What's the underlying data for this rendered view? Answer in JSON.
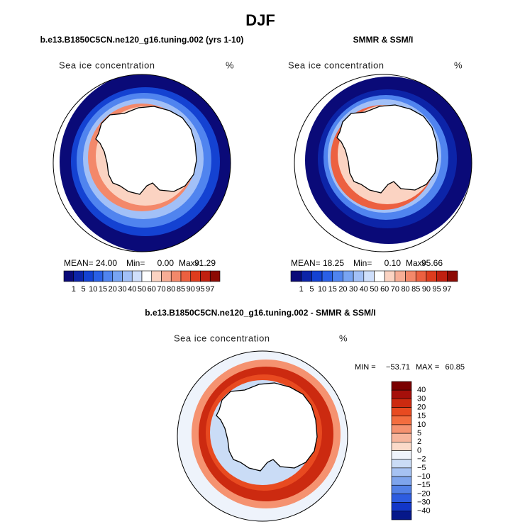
{
  "title": "DJF",
  "panels": [
    {
      "title": "b.e13.B1850C5CN.ne120_g16.tuning.002 (yrs 1-10)",
      "label": "Sea ice concentration",
      "units": "%",
      "stats": [
        {
          "name": "MEAN=",
          "value": "24.00"
        },
        {
          "name": "Min=",
          "value": "0.00"
        },
        {
          "name": "Max=",
          "value": "91.29"
        }
      ]
    },
    {
      "title": "SMMR & SSM/I",
      "label": "Sea ice concentration",
      "units": "%",
      "stats": [
        {
          "name": "MEAN=",
          "value": "18.25"
        },
        {
          "name": "Min=",
          "value": "0.10"
        },
        {
          "name": "Max=",
          "value": "95.66"
        }
      ]
    }
  ],
  "colorbar": {
    "labels": [
      "1",
      "5",
      "10",
      "15",
      "20",
      "30",
      "40",
      "50",
      "60",
      "70",
      "80",
      "85",
      "90",
      "95",
      "97"
    ],
    "colors": [
      "#0a0a78",
      "#0c24a8",
      "#1442d2",
      "#2a60e6",
      "#5084ef",
      "#78a4f3",
      "#a2c0f7",
      "#cfdffb",
      "#ffffff",
      "#fbd3c2",
      "#f7ad95",
      "#f3886a",
      "#ec6040",
      "#de3c1e",
      "#c02010",
      "#8c0a04"
    ]
  },
  "difference": {
    "title": "b.e13.B1850C5CN.ne120_g16.tuning.002 - SMMR & SSM/I",
    "label": "Sea ice concentration",
    "units": "%",
    "stats": [
      {
        "name": "MIN =",
        "value": "−53.71"
      },
      {
        "name": "MAX =",
        "value": "60.85"
      }
    ],
    "colorbar": {
      "labels": [
        "40",
        "30",
        "20",
        "15",
        "10",
        "5",
        "2",
        "0",
        "−2",
        "−5",
        "−10",
        "−15",
        "−20",
        "−30",
        "−40"
      ],
      "colors": [
        "#7a0000",
        "#a50f0a",
        "#cc2a10",
        "#e84a20",
        "#f36d3f",
        "#f59270",
        "#f7b59c",
        "#fbdac9",
        "#eef3fb",
        "#cadcf6",
        "#a6c2f2",
        "#7ea4ec",
        "#5280e6",
        "#2d5ce0",
        "#1236c8",
        "#06188a"
      ]
    }
  }
}
